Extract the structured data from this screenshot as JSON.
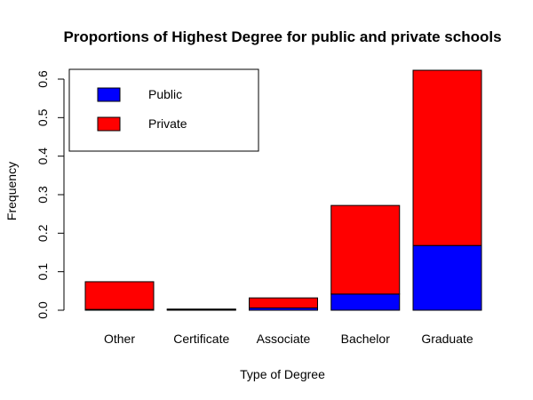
{
  "chart_data": {
    "type": "bar",
    "stacked": true,
    "title": "Proportions of Highest Degree for public and private schools",
    "xlabel": "Type of Degree",
    "ylabel": "Frequency",
    "categories": [
      "Other",
      "Certificate",
      "Associate",
      "Bachelor",
      "Graduate"
    ],
    "series": [
      {
        "name": "Public",
        "color": "#0000ff",
        "values": [
          0.002,
          0.002,
          0.006,
          0.042,
          0.168
        ]
      },
      {
        "name": "Private",
        "color": "#ff0000",
        "values": [
          0.072,
          0.001,
          0.026,
          0.23,
          0.455
        ]
      }
    ],
    "ylim": [
      0,
      0.6
    ],
    "yticks": [
      "0.0",
      "0.1",
      "0.2",
      "0.3",
      "0.4",
      "0.5",
      "0.6"
    ],
    "legend_position": "top-left",
    "grid": false
  }
}
